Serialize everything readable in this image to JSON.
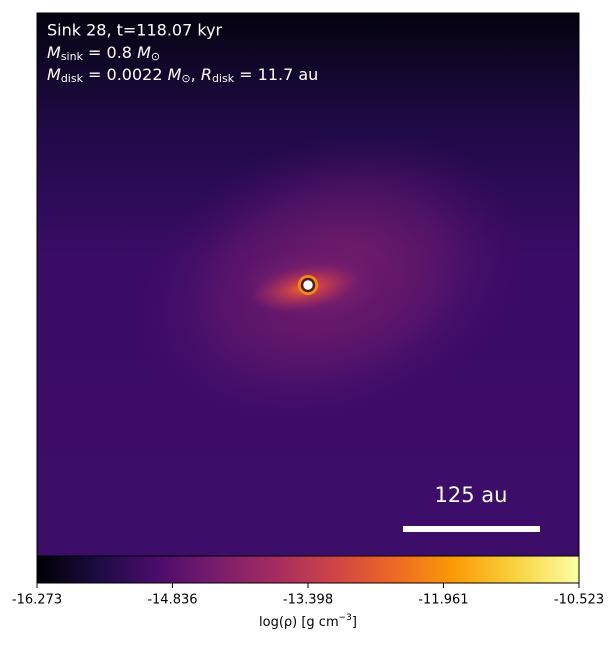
{
  "chart_data": {
    "type": "image",
    "annotations": [
      "Sink 28, t=118.07 kyr",
      [
        "M",
        "sink",
        " = 0.8 ",
        "M",
        "⊙"
      ],
      [
        "M",
        "disk",
        " = 0.0022 ",
        "M",
        "⊙",
        ", ",
        "R",
        "disk",
        " = 11.7 au"
      ]
    ],
    "scale_bar_label": "125 au",
    "colorbar": {
      "lim": [
        -16.273,
        -10.523
      ],
      "ticks": [
        -16.273,
        -14.836,
        -13.398,
        -11.961,
        -10.523
      ],
      "label": [
        "log(ρ) [g cm",
        "−3",
        "]"
      ]
    }
  }
}
